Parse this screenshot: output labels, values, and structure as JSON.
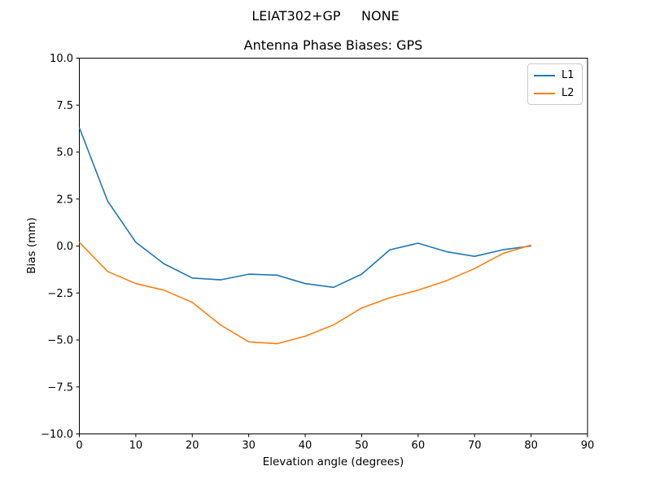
{
  "figure": {
    "suptitle": "LEIAT302+GP     NONE",
    "background_color": "#ffffff",
    "text_color": "#000000"
  },
  "chart_data": {
    "type": "line",
    "title": "Antenna Phase Biases: GPS",
    "xlabel": "Elevation angle (degrees)",
    "ylabel": "Bias (mm)",
    "xlim": [
      0,
      90
    ],
    "ylim": [
      -10,
      10
    ],
    "xticks": [
      0,
      10,
      20,
      30,
      40,
      50,
      60,
      70,
      80,
      90
    ],
    "yticks": [
      -10,
      -7.5,
      -5,
      -2.5,
      0,
      2.5,
      5,
      7.5,
      10
    ],
    "ytick_decimals": 1,
    "grid": false,
    "legend_position": "upper right",
    "x": [
      0,
      5,
      10,
      15,
      20,
      25,
      30,
      35,
      40,
      45,
      50,
      55,
      60,
      65,
      70,
      75,
      80
    ],
    "series": [
      {
        "name": "L1",
        "color": "#1f77b4",
        "values": [
          6.3,
          2.4,
          0.2,
          -0.95,
          -1.7,
          -1.8,
          -1.5,
          -1.55,
          -2.0,
          -2.2,
          -1.5,
          -0.2,
          0.15,
          -0.3,
          -0.55,
          -0.2,
          0.0
        ]
      },
      {
        "name": "L2",
        "color": "#ff7f0e",
        "values": [
          0.2,
          -1.35,
          -2.0,
          -2.35,
          -3.0,
          -4.2,
          -5.1,
          -5.2,
          -4.8,
          -4.2,
          -3.3,
          -2.75,
          -2.35,
          -1.85,
          -1.2,
          -0.4,
          0.05
        ]
      }
    ]
  }
}
